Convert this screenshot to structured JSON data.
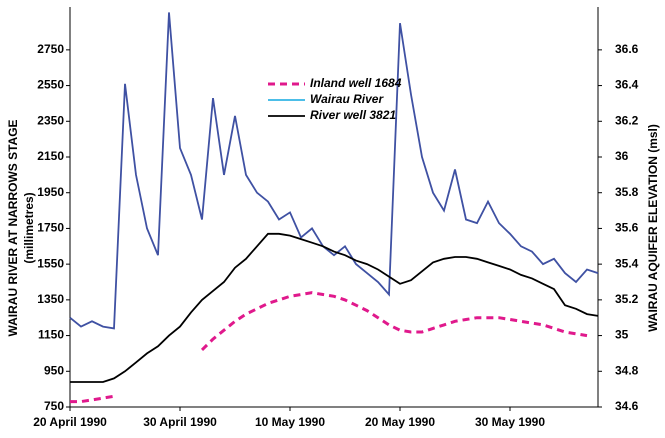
{
  "chart_data": {
    "type": "line",
    "y_label": [
      "WAIRAU RIVER AT NARROWS STAGE",
      "(millimetres)"
    ],
    "y2_label": "WAIRAU AQUIFER ELEVATION  (msl)",
    "x": [
      "1990-04-20",
      "1990-04-21",
      "1990-04-22",
      "1990-04-23",
      "1990-04-24",
      "1990-04-25",
      "1990-04-26",
      "1990-04-27",
      "1990-04-28",
      "1990-04-29",
      "1990-04-30",
      "1990-05-01",
      "1990-05-02",
      "1990-05-03",
      "1990-05-04",
      "1990-05-05",
      "1990-05-06",
      "1990-05-07",
      "1990-05-08",
      "1990-05-09",
      "1990-05-10",
      "1990-05-11",
      "1990-05-12",
      "1990-05-13",
      "1990-05-14",
      "1990-05-15",
      "1990-05-16",
      "1990-05-17",
      "1990-05-18",
      "1990-05-19",
      "1990-05-20",
      "1990-05-21",
      "1990-05-22",
      "1990-05-23",
      "1990-05-24",
      "1990-05-25",
      "1990-05-26",
      "1990-05-27",
      "1990-05-28",
      "1990-05-29",
      "1990-05-30",
      "1990-05-31",
      "1990-06-01",
      "1990-06-02",
      "1990-06-03",
      "1990-06-04",
      "1990-06-05",
      "1990-06-06",
      "1990-06-07"
    ],
    "series": [
      {
        "name": "Inland well 1684",
        "color": "#e0198c",
        "dash": true,
        "axis": "y2",
        "values": [
          34.63,
          34.63,
          34.64,
          34.65,
          34.66,
          null,
          null,
          null,
          null,
          null,
          null,
          null,
          34.92,
          34.98,
          35.03,
          35.08,
          35.12,
          35.15,
          35.18,
          35.2,
          35.22,
          35.23,
          35.24,
          35.23,
          35.22,
          35.2,
          35.17,
          35.14,
          35.1,
          35.06,
          35.03,
          35.02,
          35.02,
          35.04,
          35.06,
          35.08,
          35.09,
          35.1,
          35.1,
          35.1,
          35.09,
          35.08,
          35.07,
          35.06,
          35.04,
          35.02,
          35.01,
          35.0,
          null
        ]
      },
      {
        "name": "Wairau River",
        "color": "#3f51a3",
        "legend_color": "#33b5e5",
        "values": [
          1250,
          1200,
          1230,
          1200,
          1190,
          2560,
          2050,
          1750,
          1600,
          2960,
          2200,
          2050,
          1800,
          2480,
          2050,
          2380,
          2050,
          1950,
          1900,
          1800,
          1840,
          1700,
          1750,
          1650,
          1600,
          1650,
          1550,
          1500,
          1450,
          1380,
          2900,
          2500,
          2150,
          1950,
          1850,
          2080,
          1800,
          1780,
          1900,
          1780,
          1720,
          1650,
          1620,
          1550,
          1580,
          1500,
          1450,
          1520,
          1500
        ]
      },
      {
        "name": "River well  3821",
        "color": "#000000",
        "axis": "y2",
        "values": [
          34.74,
          34.74,
          34.74,
          34.74,
          34.76,
          34.8,
          34.85,
          34.9,
          34.94,
          35.0,
          35.05,
          35.13,
          35.2,
          35.25,
          35.3,
          35.38,
          35.43,
          35.5,
          35.57,
          35.57,
          35.56,
          35.54,
          35.52,
          35.5,
          35.47,
          35.45,
          35.42,
          35.4,
          35.37,
          35.33,
          35.29,
          35.31,
          35.36,
          35.41,
          35.43,
          35.44,
          35.44,
          35.43,
          35.41,
          35.39,
          35.37,
          35.34,
          35.32,
          35.29,
          35.26,
          35.17,
          35.15,
          35.12,
          35.11
        ]
      }
    ],
    "xlim": [
      "1990-04-20",
      "1990-06-07"
    ],
    "xticks": [
      {
        "value": "1990-04-20",
        "label": "20 April 1990"
      },
      {
        "value": "1990-04-30",
        "label": "30 April 1990"
      },
      {
        "value": "1990-05-10",
        "label": "10 May 1990"
      },
      {
        "value": "1990-05-20",
        "label": "20 May 1990"
      },
      {
        "value": "1990-05-30",
        "label": "30 May 1990"
      }
    ],
    "ylim": [
      750,
      2990
    ],
    "yticks": [
      750,
      950,
      1150,
      1350,
      1550,
      1750,
      1950,
      2150,
      2350,
      2550,
      2750
    ],
    "y2lim": [
      34.6,
      36.84
    ],
    "y2ticks": [
      34.6,
      34.8,
      35,
      35.2,
      35.4,
      35.6,
      35.8,
      36,
      36.2,
      36.4,
      36.6
    ]
  }
}
